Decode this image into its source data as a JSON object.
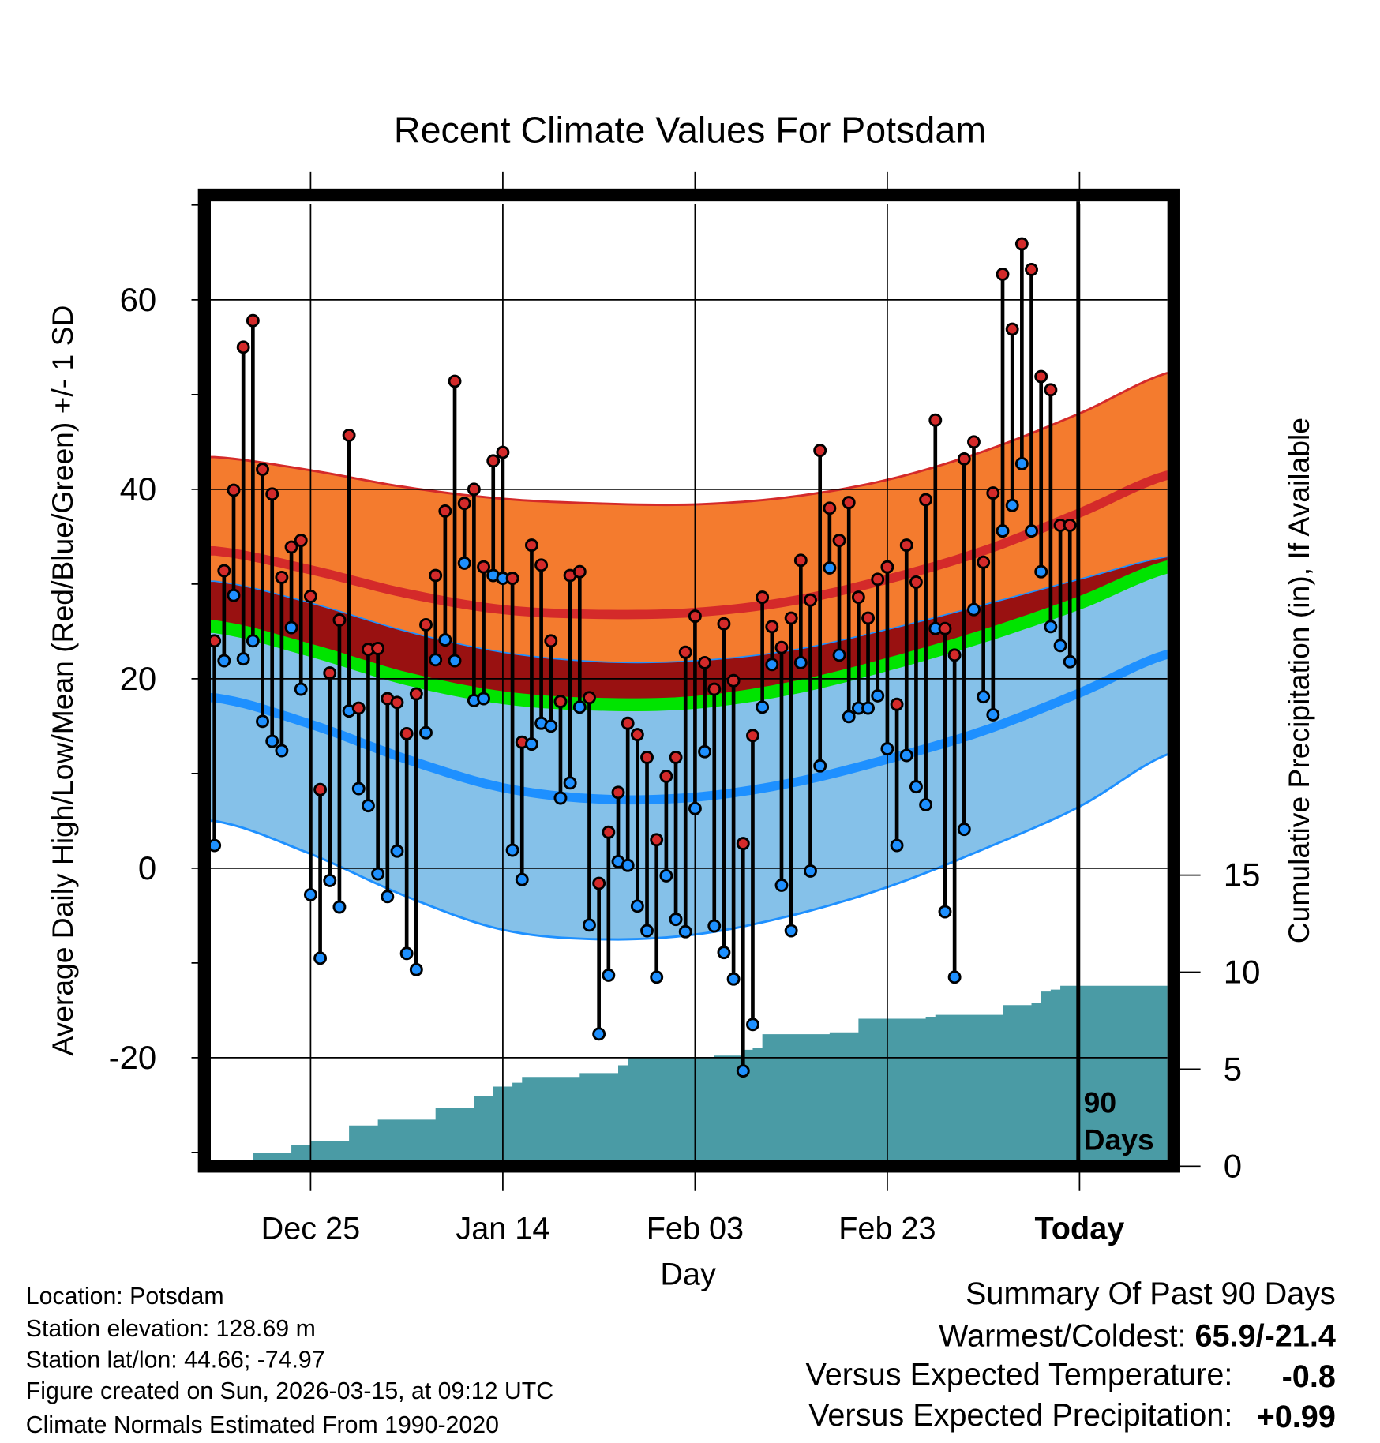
{
  "chart_data": {
    "type": "line",
    "title": "Recent Climate Values For Potsdam",
    "xlabel": "Day",
    "ylabel": "Average Daily High/Low/Mean (Red/Blue/Green) +/- 1 SD",
    "y2label": "Cumulative Precipitation (in), If Available",
    "ylim": [
      -31,
      72
    ],
    "y2lim": [
      0,
      20
    ],
    "x_range_days": [
      0,
      100
    ],
    "x_ticks": [
      {
        "day": 10,
        "label": "Dec 25"
      },
      {
        "day": 30,
        "label": "Jan 14"
      },
      {
        "day": 50,
        "label": "Feb 03"
      },
      {
        "day": 70,
        "label": "Feb 23"
      },
      {
        "day": 90,
        "label": "Today"
      }
    ],
    "y_ticks": [
      {
        "value": 60,
        "label": "60"
      },
      {
        "value": 40,
        "label": "40"
      },
      {
        "value": 20,
        "label": "20"
      },
      {
        "value": 0,
        "label": "0"
      },
      {
        "value": -20,
        "label": "-20"
      }
    ],
    "y_minor_ticks": [
      70,
      50,
      30,
      10,
      -10,
      -30
    ],
    "y2_ticks": [
      {
        "value": 0,
        "label": "0"
      },
      {
        "value": 5,
        "label": "5"
      },
      {
        "value": 10,
        "label": "10"
      },
      {
        "value": 15,
        "label": "15"
      }
    ],
    "today_label": [
      "90",
      "Days"
    ],
    "grid": true,
    "daily_highs": [
      24.0,
      31.4,
      39.9,
      55.0,
      57.8,
      42.1,
      39.5,
      30.7,
      33.9,
      34.6,
      28.7,
      8.3,
      20.6,
      26.2,
      45.7,
      16.9,
      23.1,
      23.2,
      17.9,
      17.5,
      14.2,
      18.4,
      25.7,
      30.9,
      37.7,
      51.4,
      38.5,
      40.0,
      31.8,
      43.0,
      43.9,
      30.6,
      13.3,
      34.1,
      32.0,
      24.0,
      17.6,
      30.9,
      31.3,
      18.0,
      -1.6,
      3.8,
      8.0,
      15.3,
      14.1,
      11.7,
      3.0,
      9.7,
      11.7,
      22.8,
      26.6,
      21.7,
      18.9,
      25.8,
      19.8,
      2.6,
      14.0,
      28.6,
      25.5,
      23.3,
      26.4,
      32.5,
      28.3,
      44.1,
      38.0,
      34.6,
      38.6,
      28.6,
      26.4,
      30.5,
      31.8,
      17.3,
      34.1,
      30.2,
      38.9,
      47.3,
      25.3,
      22.5,
      43.2,
      45.0,
      32.3,
      39.6,
      62.7,
      56.9,
      65.9,
      63.2,
      51.9,
      50.5,
      36.2,
      36.2
    ],
    "daily_lows": [
      2.4,
      21.9,
      28.8,
      22.1,
      24.0,
      15.5,
      13.4,
      12.4,
      25.4,
      18.9,
      -2.8,
      -9.5,
      -1.3,
      -4.1,
      16.6,
      8.4,
      6.6,
      -0.6,
      -3.0,
      1.8,
      -9.0,
      -10.7,
      14.3,
      22.0,
      24.1,
      21.9,
      32.2,
      17.7,
      17.9,
      30.9,
      30.6,
      1.9,
      -1.2,
      13.1,
      15.3,
      15.0,
      7.4,
      9.0,
      17.0,
      -6.0,
      -17.5,
      -11.3,
      0.7,
      0.3,
      -4.0,
      -6.6,
      -11.5,
      -0.8,
      -5.4,
      -6.7,
      6.3,
      12.3,
      -6.1,
      -8.9,
      -11.7,
      -21.4,
      -16.5,
      17.0,
      21.5,
      -1.8,
      -6.6,
      21.7,
      -0.3,
      10.8,
      31.7,
      22.5,
      16.0,
      16.9,
      16.9,
      18.2,
      12.6,
      2.4,
      11.9,
      8.6,
      6.7,
      25.3,
      -4.6,
      -11.5,
      4.1,
      27.3,
      18.1,
      16.2,
      35.6,
      38.3,
      42.7,
      35.6,
      31.3,
      25.5,
      23.5,
      21.8
    ],
    "normals": {
      "days": [
        0,
        10,
        20,
        30,
        40,
        50,
        60,
        70,
        80,
        90,
        100
      ],
      "high_plus_sd": [
        43.4,
        42.0,
        40.2,
        39.0,
        38.5,
        38.4,
        39.2,
        41.0,
        44.0,
        48.0,
        52.5
      ],
      "high_mean": [
        33.5,
        31.5,
        29.0,
        27.3,
        26.8,
        27.0,
        28.2,
        30.5,
        33.5,
        37.5,
        41.7
      ],
      "high_minus_sd": [
        30.3,
        28.0,
        25.0,
        22.8,
        21.8,
        21.9,
        23.0,
        25.2,
        27.8,
        30.5,
        33.0
      ],
      "mean": [
        25.5,
        23.0,
        20.0,
        18.0,
        17.3,
        17.5,
        19.0,
        21.5,
        24.5,
        28.0,
        32.0
      ],
      "low_mean": [
        18.0,
        15.2,
        11.5,
        8.5,
        7.3,
        7.5,
        9.0,
        11.5,
        14.5,
        18.5,
        22.8
      ],
      "low_minus_sd": [
        5.0,
        1.5,
        -3.0,
        -6.5,
        -7.5,
        -7.0,
        -5.0,
        -2.0,
        2.0,
        6.5,
        12.3
      ]
    },
    "cumulative_precip_steps": [
      [
        4,
        0.7
      ],
      [
        8,
        1.1
      ],
      [
        10,
        1.3
      ],
      [
        14,
        2.1
      ],
      [
        17,
        2.4
      ],
      [
        23,
        3.0
      ],
      [
        27,
        3.6
      ],
      [
        29,
        4.1
      ],
      [
        31,
        4.3
      ],
      [
        32,
        4.6
      ],
      [
        38,
        4.8
      ],
      [
        42,
        5.2
      ],
      [
        43,
        5.6
      ],
      [
        52,
        5.7
      ],
      [
        55,
        6.0
      ],
      [
        56,
        6.1
      ],
      [
        57,
        6.8
      ],
      [
        64,
        6.9
      ],
      [
        67,
        7.6
      ],
      [
        74,
        7.7
      ],
      [
        75,
        7.8
      ],
      [
        82,
        8.3
      ],
      [
        85,
        8.4
      ],
      [
        86,
        9.0
      ],
      [
        87,
        9.1
      ],
      [
        88,
        9.3
      ],
      [
        100,
        9.3
      ]
    ],
    "colors": {
      "high": "#d42a2a",
      "low": "#1e90ff",
      "mean": "#00e400",
      "high_band": "#f47b2e",
      "mid_band": "#991111",
      "low_band": "#85c1e9",
      "precip": "#4a9ba5"
    }
  },
  "footer": {
    "location": "Location: Potsdam",
    "elevation": "Station elevation: 128.69 m",
    "latlon": "Station lat/lon: 44.66; -74.97",
    "created": "Figure created on Sun, 2026-03-15, at 09:12 UTC",
    "normals": "Climate Normals Estimated From 1990-2020"
  },
  "summary": {
    "title": "Summary Of Past 90 Days",
    "warmest_coldest_label": "Warmest/Coldest:",
    "warmest_coldest_value": "65.9/-21.4",
    "temp_label": "Versus Expected Temperature:",
    "temp_value": "-0.8",
    "temp_color": "#1e90ff",
    "precip_label": "Versus Expected Precipitation:",
    "precip_value": "+0.99",
    "precip_color": "#00e400"
  }
}
